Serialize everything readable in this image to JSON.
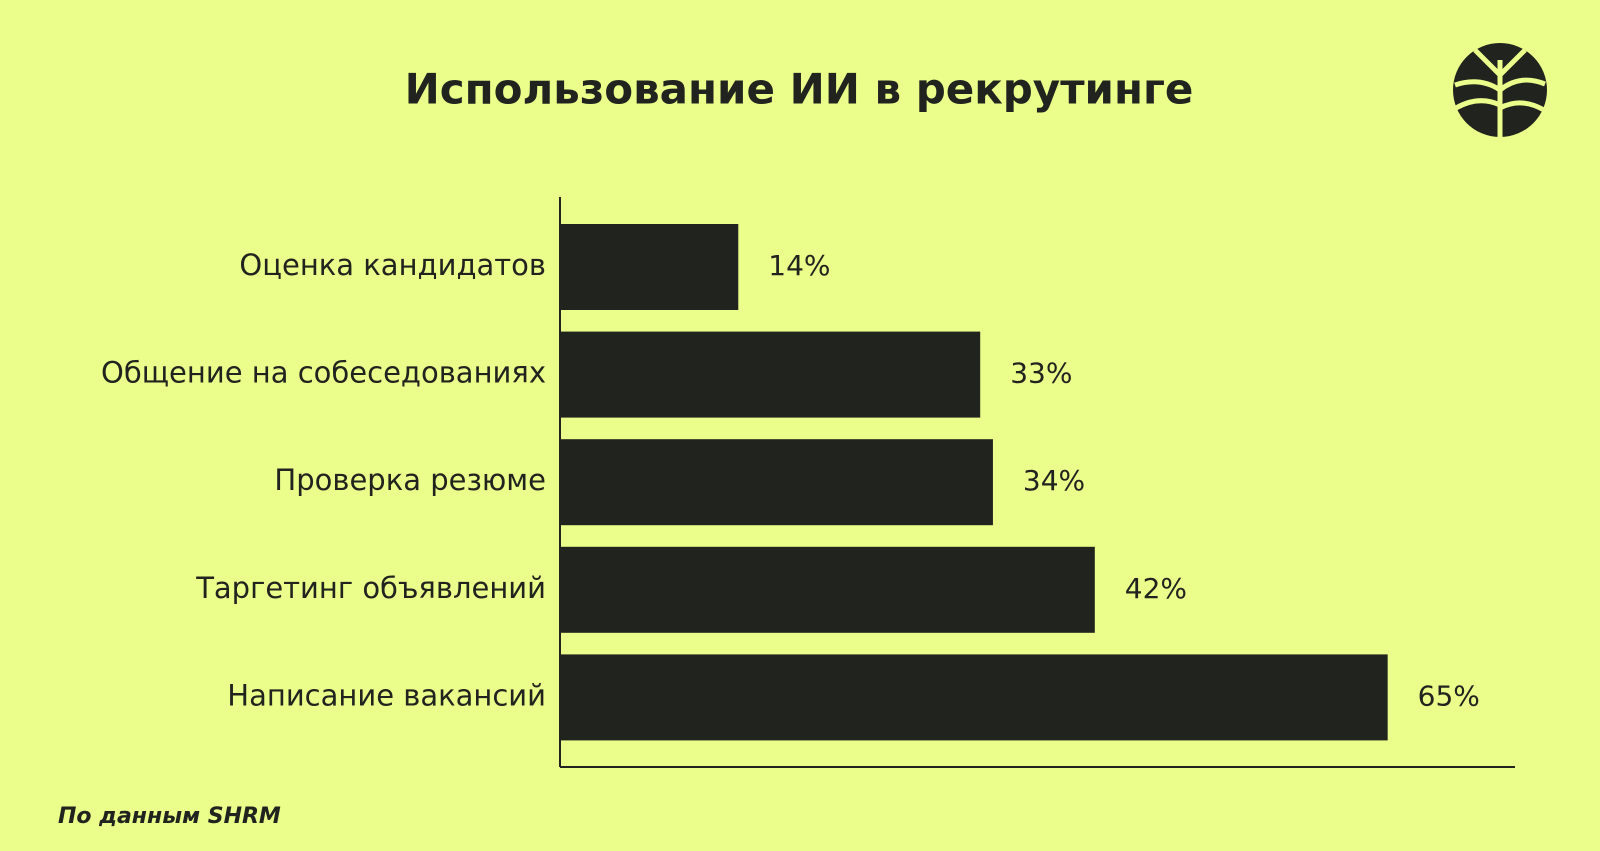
{
  "chart_data": {
    "type": "barh",
    "title": "Использование ИИ в рекрутинге",
    "categories": [
      "Оценка кандидатов",
      "Общение на собеседованиях",
      "Проверка резюме",
      "Таргетинг объявлений",
      "Написание вакансий"
    ],
    "values": [
      14,
      33,
      34,
      42,
      65
    ],
    "value_labels": [
      "14%",
      "33%",
      "34%",
      "42%",
      "65%"
    ],
    "color": "#21241e",
    "xlim": [
      0,
      75
    ],
    "source": "По данным SHRM"
  }
}
